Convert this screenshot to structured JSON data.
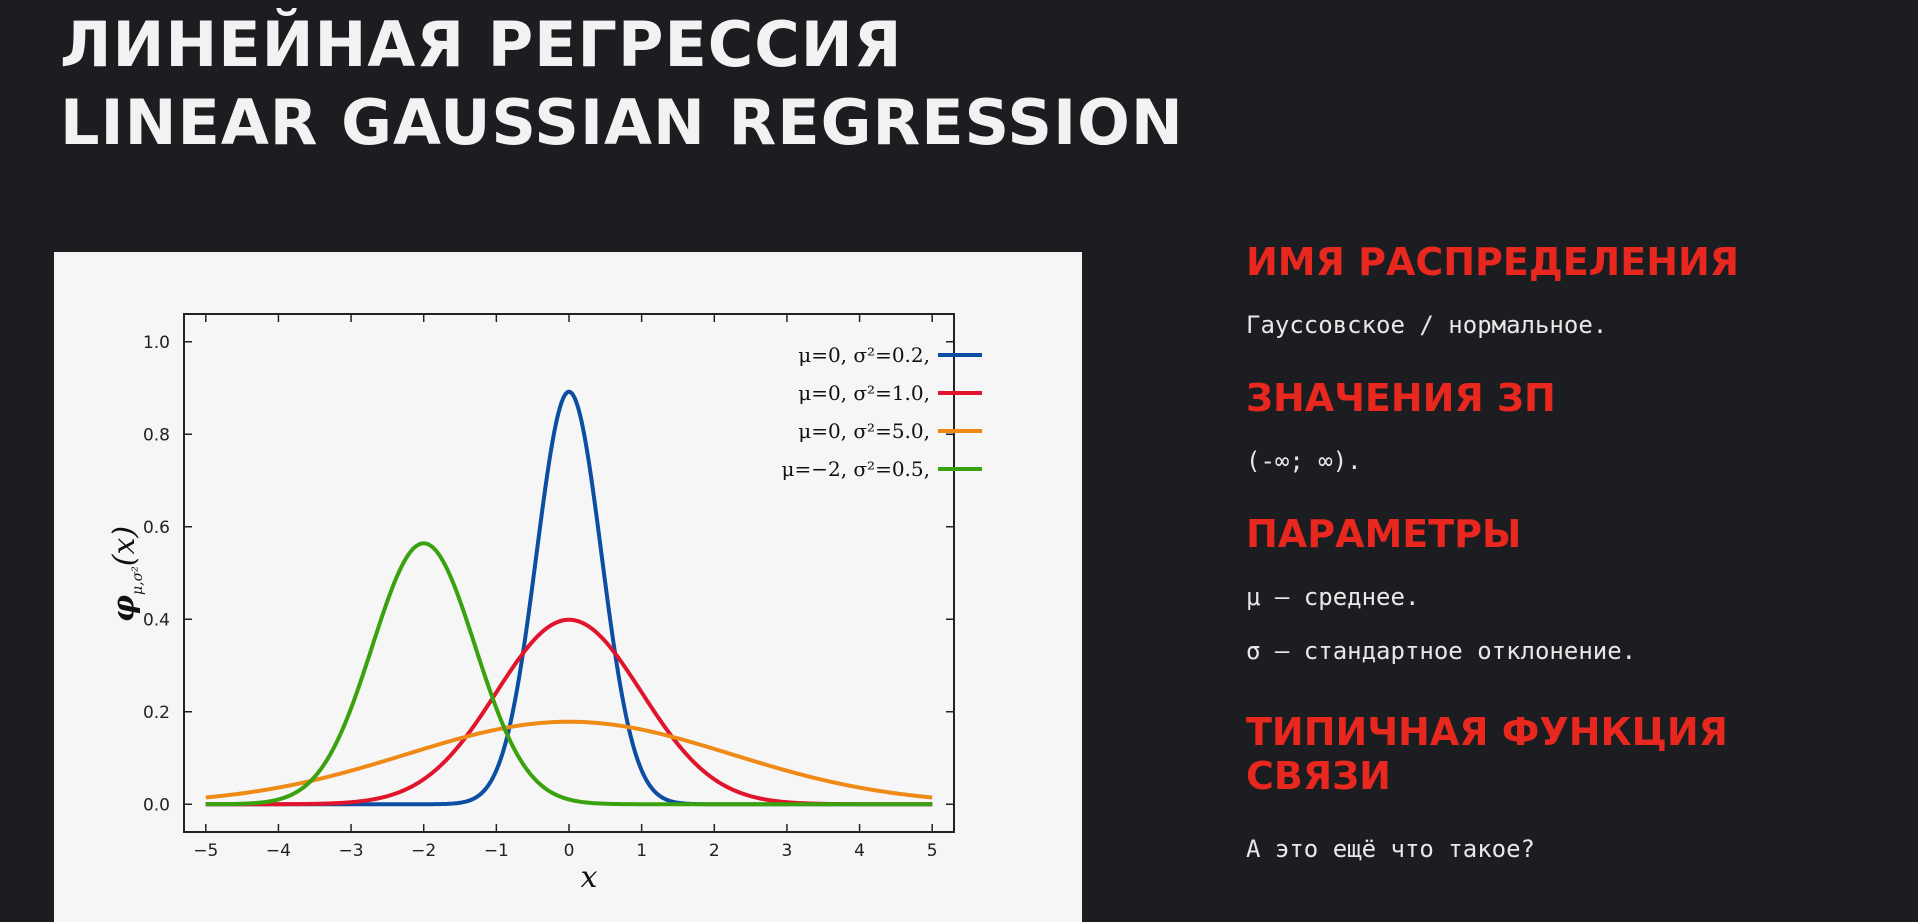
{
  "title": {
    "line1": "ЛИНЕЙНАЯ РЕГРЕССИЯ",
    "line2": "LINEAR GAUSSIAN REGRESSION"
  },
  "info": {
    "dist_name_heading": "ИМЯ РАСПРЕДЕЛЕНИЯ",
    "dist_name_text": "Гауссовское / нормальное.",
    "values_heading": "ЗНАЧЕНИЯ ЗП",
    "values_text": "(-∞; ∞).",
    "params_heading": "ПАРАМЕТРЫ",
    "params_mu": "μ – среднее.",
    "params_sigma": "σ – стандартное отклонение.",
    "link_heading_line1": "ТИПИЧНАЯ ФУНКЦИЯ",
    "link_heading_line2": "СВЯЗИ",
    "link_text": "А это ещё что такое?"
  },
  "chart_data": {
    "type": "line",
    "xlabel": "x",
    "ylabel": "φ",
    "ylabel_sub": "μ,σ²",
    "ylabel_arg": "(x)",
    "xlim": [
      -5.3,
      5.3
    ],
    "ylim": [
      -0.06,
      1.06
    ],
    "xticks": [
      -5,
      -4,
      -3,
      -2,
      -1,
      0,
      1,
      2,
      3,
      4,
      5
    ],
    "yticks": [
      0.0,
      0.2,
      0.4,
      0.6,
      0.8,
      1.0
    ],
    "ytick_labels": [
      "0.0",
      "0.2",
      "0.4",
      "0.6",
      "0.8",
      "1.0"
    ],
    "grid": false,
    "legend_position": "top-right",
    "series": [
      {
        "name": "μ=0,   σ²=0.2,",
        "mu": 0,
        "variance": 0.2,
        "color": "#0b4ea2"
      },
      {
        "name": "μ=0,   σ²=1.0,",
        "mu": 0,
        "variance": 1.0,
        "color": "#e0152d"
      },
      {
        "name": "μ=0,   σ²=5.0,",
        "mu": 0,
        "variance": 5.0,
        "color": "#ef8a17"
      },
      {
        "name": "μ=−2,  σ²=0.5,",
        "mu": -2,
        "variance": 0.5,
        "color": "#3aa10f"
      }
    ]
  }
}
